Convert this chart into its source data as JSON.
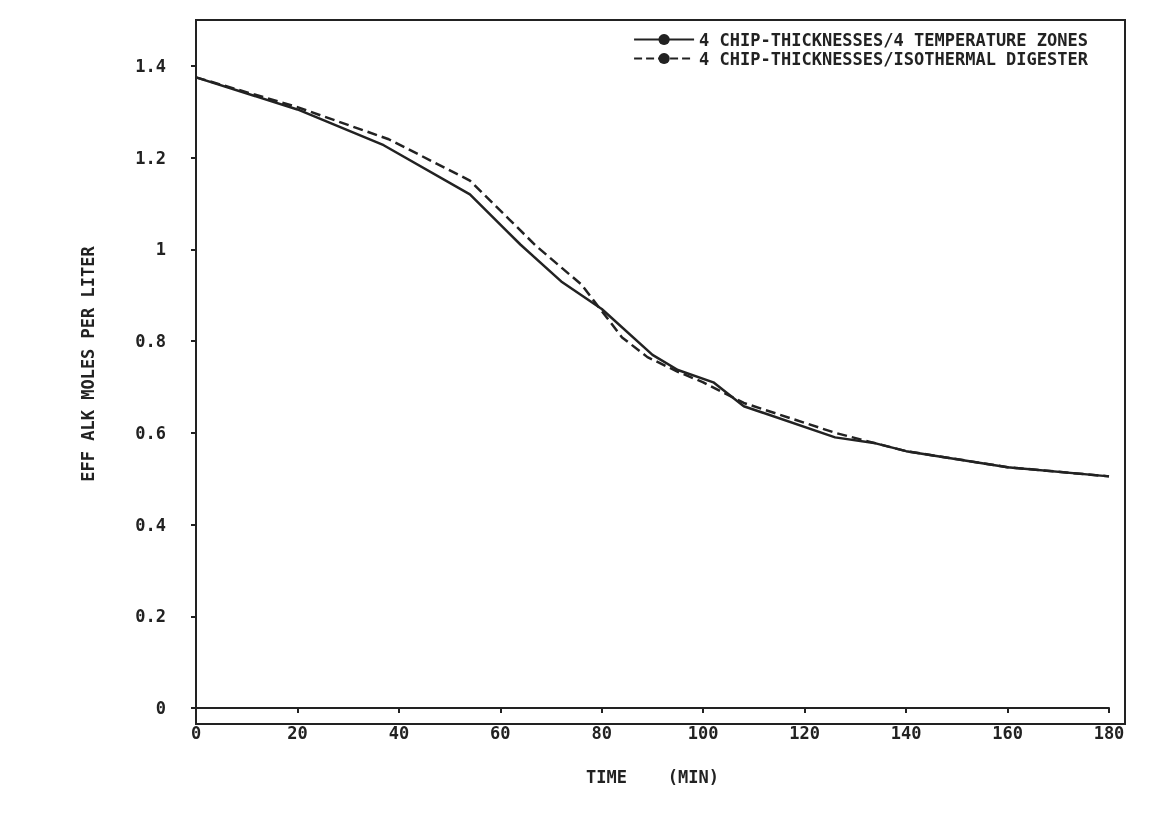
{
  "chart_data": {
    "type": "line",
    "xlabel": "TIME    (MIN)",
    "ylabel": "EFF ALK MOLES PER LITER",
    "xlim": [
      0,
      180
    ],
    "ylim": [
      0,
      1.5
    ],
    "xticks": [
      0,
      20,
      40,
      60,
      80,
      100,
      120,
      140,
      160,
      180
    ],
    "yticks": [
      0,
      0.2,
      0.4,
      0.6,
      0.8,
      1,
      1.2,
      1.4
    ],
    "grid": false,
    "legend": "top right",
    "marker": "none",
    "series": [
      {
        "name": "4 CHIP-THICKNESSES/4 TEMPERATURE ZONES",
        "color": "#222222",
        "line_style": "solid",
        "x": [
          0,
          20,
          37,
          54,
          64,
          72,
          76,
          80,
          90,
          95,
          102,
          108,
          126,
          134,
          140,
          160,
          180
        ],
        "values": [
          1.375,
          1.305,
          1.227,
          1.12,
          1.01,
          0.93,
          0.9,
          0.87,
          0.77,
          0.737,
          0.71,
          0.658,
          0.59,
          0.577,
          0.56,
          0.525,
          0.505
        ]
      },
      {
        "name": "4 CHIP-THICKNESSES/ISOTHERMAL DIGESTER",
        "color": "#222222",
        "line_style": "dashed",
        "x": [
          0,
          20,
          38,
          54,
          67,
          76,
          84,
          89,
          95,
          100,
          108,
          126,
          140,
          160,
          180
        ],
        "values": [
          1.375,
          1.31,
          1.24,
          1.15,
          1.008,
          0.923,
          0.808,
          0.765,
          0.733,
          0.71,
          0.665,
          0.6,
          0.56,
          0.525,
          0.505
        ]
      }
    ]
  }
}
